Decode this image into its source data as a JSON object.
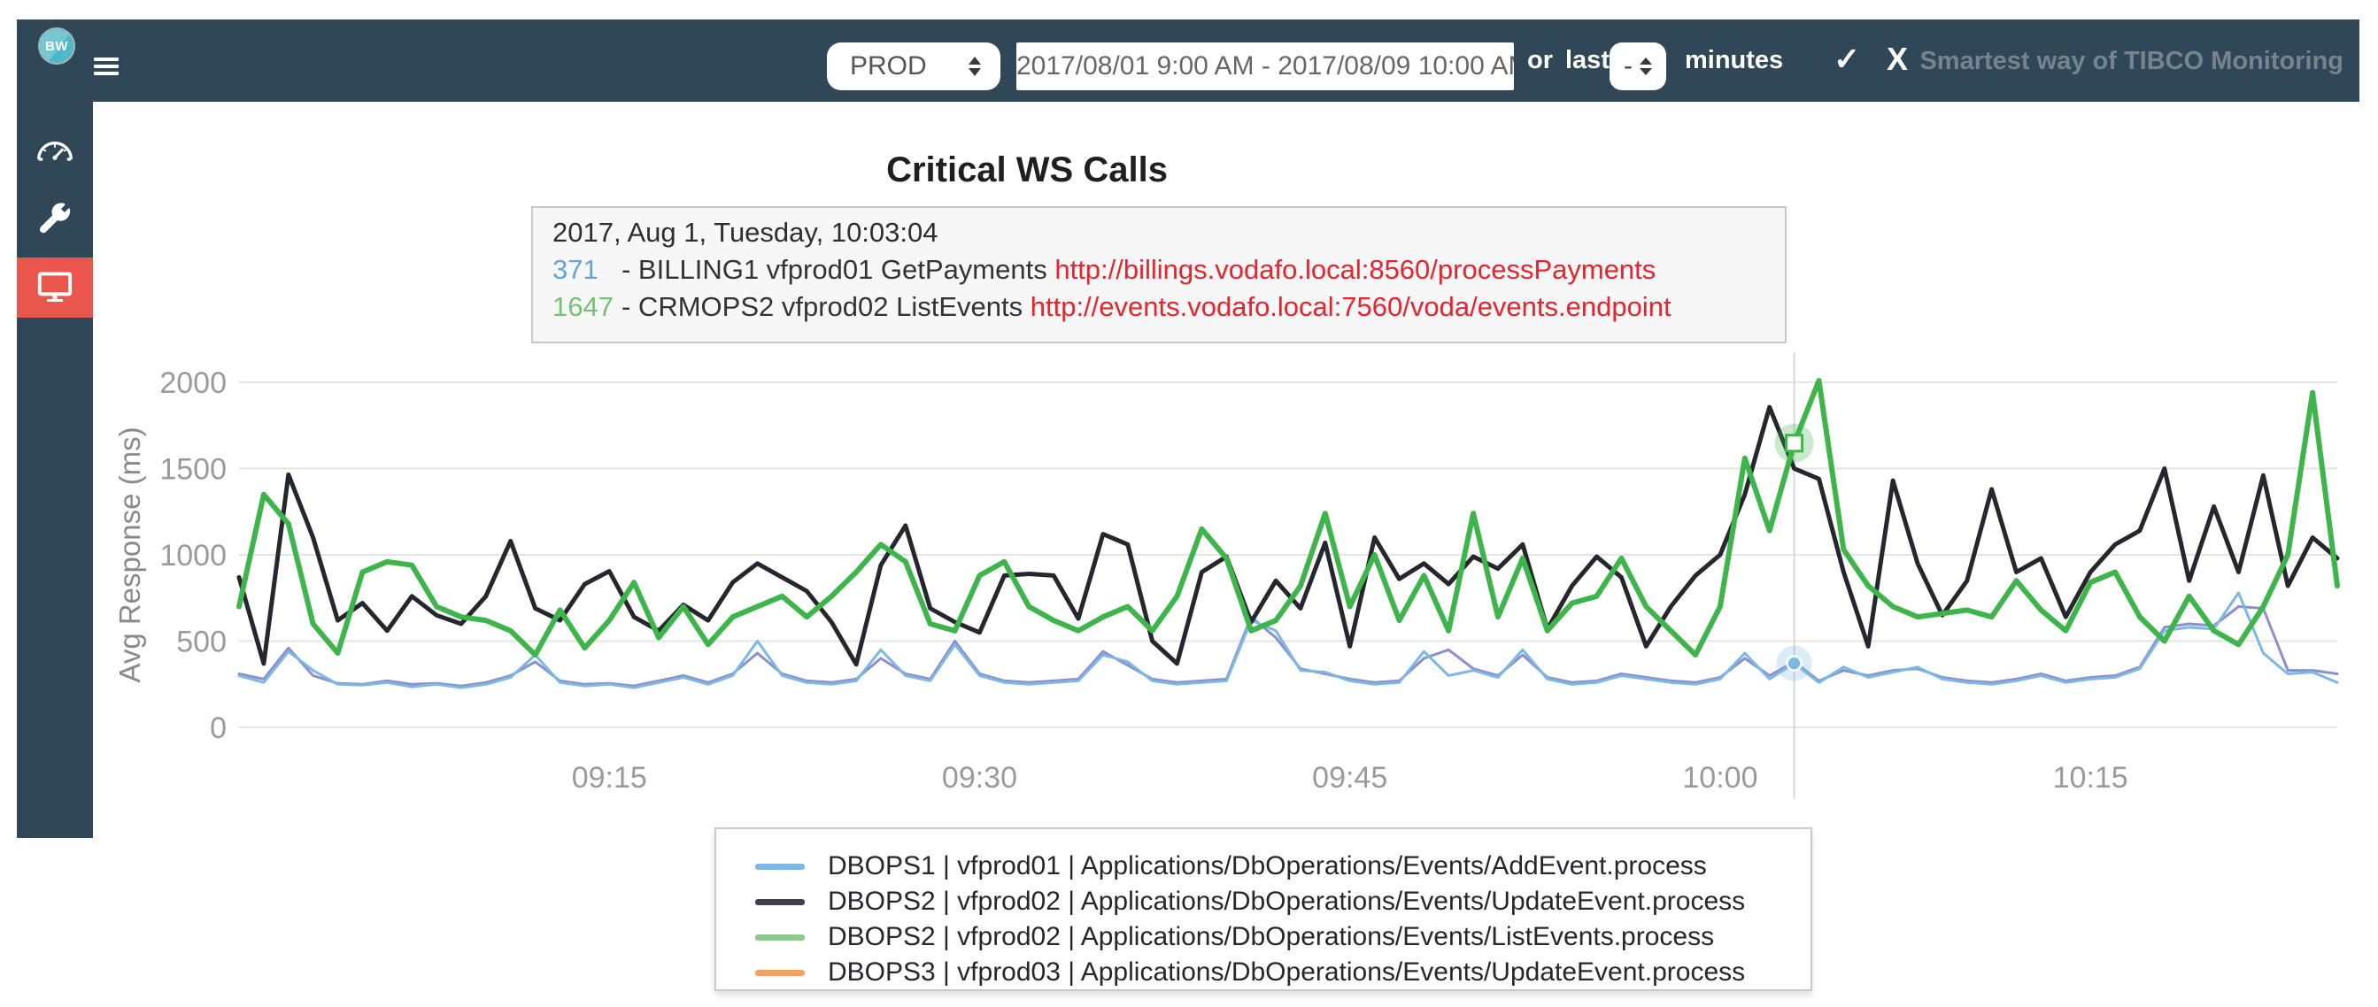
{
  "navbar": {
    "logo_text": "BW",
    "menu_icon": "hamburger-icon",
    "env_select": {
      "value": "PROD"
    },
    "date_range_value": "2017/08/01 9:00 AM - 2017/08/09 10:00 AM",
    "or_label": "or",
    "last_label": "last",
    "minutes_stepper_value": "-",
    "minutes_label": "minutes",
    "apply_label": "✓",
    "cancel_label": "X",
    "tagline": "Smartest way of TIBCO Monitoring"
  },
  "sidebar": {
    "items": [
      {
        "name": "dashboard",
        "icon": "gauge-icon",
        "active": false
      },
      {
        "name": "tools",
        "icon": "wrench-icon",
        "active": false
      },
      {
        "name": "monitoring",
        "icon": "monitor-icon",
        "active": true
      }
    ],
    "active_color": "#ea564c",
    "background_color": "#2f4756"
  },
  "tooltip": {
    "timestamp": "2017, Aug 1, Tuesday, 10:03:04",
    "rows": [
      {
        "value": "371",
        "value_color": "#64a5dc",
        "label": "- BILLING1 vfprod01 GetPayments ",
        "url": "http://billings.vodafo.local:8560/processPayments",
        "url_color": "#e8232d"
      },
      {
        "value": "1647",
        "value_color": "#77c077",
        "label": "- CRMOPS2 vfprod02 ListEvents ",
        "url": "http://events.vodafo.local:7560/voda/events.endpoint",
        "url_color": "#e8232d"
      }
    ]
  },
  "legend": {
    "items": [
      {
        "label": "DBOPS1 | vfprod01 | Applications/DbOperations/Events/AddEvent.process",
        "swatch_color": "#7db9e6"
      },
      {
        "label": "DBOPS2 | vfprod02 | Applications/DbOperations/Events/UpdateEvent.process",
        "swatch_color": "#3e434e"
      },
      {
        "label": "DBOPS2 | vfprod02 | Applications/DbOperations/Events/ListEvents.process",
        "swatch_color": "#8bca8b"
      },
      {
        "label": "DBOPS3 | vfprod03 | Applications/DbOperations/Events/UpdateEvent.process",
        "swatch_color": "#f5a263"
      }
    ]
  },
  "chart_data": {
    "type": "line",
    "title": "Critical WS Calls",
    "xlabel": "",
    "ylabel": "Avg Response (ms)",
    "ylim": [
      0,
      2000
    ],
    "y_ticks": [
      0,
      500,
      1000,
      1500,
      2000
    ],
    "x_start": "09:00",
    "x_end": "10:25",
    "x_interval_minutes": 1,
    "x_tick_labels": [
      "09:15",
      "09:30",
      "09:45",
      "10:00",
      "10:15"
    ],
    "x_tick_indices": [
      15,
      30,
      45,
      60,
      75
    ],
    "grid": "horizontal",
    "legend_position": "bottom",
    "series": [
      {
        "name": "DBOPS1 | vfprod01 | Applications/DbOperations/Events/AddEvent.process",
        "line_color": "#7cb7e5",
        "legend_color": "#7db9e6",
        "width": 3,
        "values": [
          300,
          260,
          440,
          330,
          250,
          245,
          260,
          235,
          250,
          230,
          250,
          290,
          420,
          260,
          240,
          250,
          230,
          260,
          290,
          250,
          300,
          500,
          300,
          260,
          250,
          270,
          450,
          300,
          270,
          480,
          300,
          260,
          250,
          260,
          270,
          420,
          380,
          270,
          250,
          260,
          270,
          620,
          560,
          330,
          320,
          270,
          250,
          260,
          440,
          300,
          330,
          290,
          450,
          280,
          250,
          260,
          300,
          280,
          260,
          250,
          280,
          430,
          280,
          371,
          260,
          350,
          290,
          320,
          350,
          280,
          260,
          250,
          270,
          300,
          260,
          280,
          290,
          340,
          560,
          580,
          570,
          780,
          430,
          310,
          320,
          260
        ]
      },
      {
        "name": "DBOPS2 | vfprod02 | Applications/DbOperations/Events/UpdateEvent.process",
        "line_color": "#26262e",
        "legend_color": "#3e434e",
        "width": 5,
        "values": [
          870,
          370,
          1465,
          1100,
          620,
          720,
          560,
          760,
          650,
          600,
          760,
          1080,
          690,
          620,
          830,
          905,
          640,
          560,
          710,
          620,
          840,
          950,
          870,
          790,
          610,
          365,
          940,
          1170,
          690,
          610,
          550,
          880,
          890,
          880,
          630,
          1120,
          1060,
          500,
          370,
          900,
          990,
          610,
          850,
          690,
          1070,
          470,
          1100,
          860,
          950,
          830,
          990,
          920,
          1060,
          570,
          820,
          990,
          870,
          470,
          700,
          880,
          1000,
          1350,
          1856,
          1500,
          1440,
          900,
          470,
          1430,
          950,
          650,
          850,
          1380,
          900,
          980,
          640,
          900,
          1060,
          1140,
          1500,
          850,
          1280,
          900,
          1460,
          820,
          1100,
          980
        ]
      },
      {
        "name": "DBOPS2 | vfprod02 | Applications/DbOperations/Events/ListEvents.process",
        "line_color": "#3db54a",
        "legend_color": "#8bca8b",
        "width": 6,
        "values": [
          700,
          1350,
          1180,
          600,
          430,
          900,
          960,
          940,
          700,
          640,
          620,
          560,
          420,
          680,
          460,
          620,
          840,
          520,
          700,
          480,
          640,
          700,
          760,
          640,
          760,
          900,
          1060,
          960,
          600,
          560,
          880,
          960,
          700,
          620,
          560,
          640,
          700,
          560,
          760,
          1150,
          980,
          560,
          620,
          820,
          1240,
          700,
          1000,
          620,
          880,
          560,
          1240,
          640,
          980,
          560,
          720,
          760,
          980,
          700,
          560,
          420,
          700,
          1560,
          1140,
          1647,
          2010,
          1030,
          820,
          700,
          640,
          660,
          680,
          640,
          850,
          680,
          560,
          840,
          900,
          640,
          500,
          760,
          560,
          480,
          700,
          1000,
          1940,
          820
        ]
      },
      {
        "name": "DBOPS3 | vfprod03 | Applications/DbOperations/Events/UpdateEvent.process",
        "line_color": "#8b90cb",
        "legend_color": "#f5a263",
        "width": 3,
        "values": [
          310,
          280,
          460,
          300,
          255,
          250,
          270,
          250,
          255,
          240,
          260,
          300,
          380,
          270,
          250,
          255,
          240,
          270,
          300,
          260,
          310,
          430,
          310,
          270,
          260,
          280,
          400,
          310,
          280,
          500,
          310,
          270,
          260,
          270,
          280,
          440,
          360,
          280,
          260,
          270,
          280,
          640,
          520,
          340,
          310,
          280,
          260,
          270,
          400,
          450,
          340,
          300,
          420,
          290,
          260,
          270,
          310,
          290,
          270,
          260,
          290,
          400,
          300,
          380,
          270,
          330,
          300,
          330,
          340,
          290,
          270,
          260,
          280,
          310,
          270,
          290,
          300,
          350,
          580,
          600,
          590,
          700,
          690,
          330,
          330,
          310
        ]
      }
    ],
    "hover": {
      "index": 63,
      "time_label": "2017, Aug 1, Tuesday, 10:03:04",
      "points": [
        {
          "series": 0,
          "value": 371,
          "marker": "circle"
        },
        {
          "series": 2,
          "value": 1647,
          "marker": "square"
        }
      ]
    }
  }
}
